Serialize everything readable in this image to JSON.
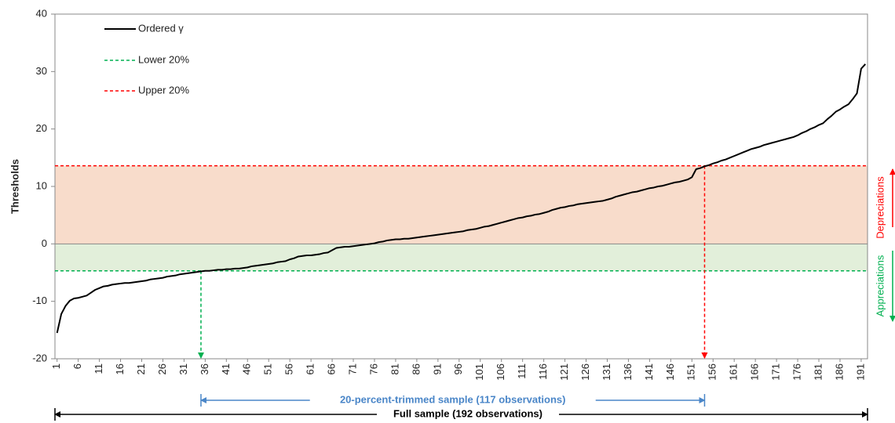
{
  "chart_data": {
    "type": "line",
    "y_label": "Thresholds",
    "ylim": [
      -20,
      40
    ],
    "yticks": [
      -20,
      -10,
      0,
      10,
      20,
      30,
      40
    ],
    "categories": [
      1,
      null,
      null,
      null,
      null,
      6,
      null,
      null,
      null,
      null,
      11,
      null,
      null,
      null,
      null,
      16,
      null,
      null,
      null,
      null,
      21,
      null,
      null,
      null,
      null,
      26,
      null,
      null,
      null,
      null,
      31,
      null,
      null,
      null,
      null,
      36,
      null,
      null,
      null,
      null,
      41,
      null,
      null,
      null,
      null,
      46,
      null,
      null,
      null,
      null,
      51,
      null,
      null,
      null,
      null,
      56,
      null,
      null,
      null,
      null,
      61,
      null,
      null,
      null,
      null,
      66,
      null,
      null,
      null,
      null,
      71,
      null,
      null,
      null,
      null,
      76,
      null,
      null,
      null,
      null,
      81,
      null,
      null,
      null,
      null,
      86,
      null,
      null,
      null,
      null,
      91,
      null,
      null,
      null,
      null,
      96,
      null,
      null,
      null,
      null,
      101,
      null,
      null,
      null,
      null,
      106,
      null,
      null,
      null,
      null,
      111,
      null,
      null,
      null,
      null,
      116,
      null,
      null,
      null,
      null,
      121,
      null,
      null,
      null,
      null,
      126,
      null,
      null,
      null,
      null,
      131,
      null,
      null,
      null,
      null,
      136,
      null,
      null,
      null,
      null,
      141,
      null,
      null,
      null,
      null,
      146,
      null,
      null,
      null,
      null,
      151,
      null,
      null,
      null,
      null,
      156,
      null,
      null,
      null,
      null,
      161,
      null,
      null,
      null,
      null,
      166,
      null,
      null,
      null,
      null,
      171,
      null,
      null,
      null,
      null,
      176,
      null,
      null,
      null,
      null,
      181,
      null,
      null,
      null,
      null,
      186,
      null,
      null,
      null,
      null,
      191,
      null
    ],
    "series": [
      {
        "name": "Ordered γ",
        "color": "#000000",
        "values": [
          -15.5,
          -12.2,
          -10.8,
          -9.9,
          -9.5,
          -9.4,
          -9.2,
          -9.0,
          -8.5,
          -8.0,
          -7.7,
          -7.4,
          -7.3,
          -7.1,
          -7.0,
          -6.9,
          -6.8,
          -6.8,
          -6.7,
          -6.6,
          -6.5,
          -6.4,
          -6.2,
          -6.1,
          -6.0,
          -5.9,
          -5.7,
          -5.6,
          -5.5,
          -5.3,
          -5.2,
          -5.1,
          -5.0,
          -4.9,
          -4.8,
          -4.7,
          -4.7,
          -4.6,
          -4.5,
          -4.5,
          -4.4,
          -4.4,
          -4.3,
          -4.3,
          -4.2,
          -4.1,
          -3.9,
          -3.8,
          -3.7,
          -3.6,
          -3.5,
          -3.4,
          -3.2,
          -3.1,
          -3.0,
          -2.7,
          -2.5,
          -2.2,
          -2.1,
          -2.0,
          -2.0,
          -1.9,
          -1.8,
          -1.6,
          -1.5,
          -1.1,
          -0.7,
          -0.6,
          -0.5,
          -0.5,
          -0.4,
          -0.3,
          -0.2,
          -0.1,
          0.0,
          0.1,
          0.3,
          0.4,
          0.6,
          0.7,
          0.8,
          0.8,
          0.9,
          0.9,
          1.0,
          1.1,
          1.2,
          1.3,
          1.4,
          1.5,
          1.6,
          1.7,
          1.8,
          1.9,
          2.0,
          2.1,
          2.2,
          2.4,
          2.5,
          2.6,
          2.8,
          3.0,
          3.1,
          3.3,
          3.5,
          3.7,
          3.9,
          4.1,
          4.3,
          4.5,
          4.6,
          4.8,
          4.9,
          5.1,
          5.2,
          5.4,
          5.6,
          5.9,
          6.1,
          6.3,
          6.4,
          6.6,
          6.7,
          6.9,
          7.0,
          7.1,
          7.2,
          7.3,
          7.4,
          7.5,
          7.7,
          7.9,
          8.2,
          8.4,
          8.6,
          8.8,
          9.0,
          9.1,
          9.3,
          9.5,
          9.7,
          9.8,
          10.0,
          10.1,
          10.3,
          10.5,
          10.7,
          10.8,
          11.0,
          11.2,
          11.6,
          13.0,
          13.2,
          13.5,
          13.7,
          14.0,
          14.2,
          14.5,
          14.7,
          15.0,
          15.3,
          15.6,
          15.9,
          16.2,
          16.5,
          16.7,
          16.9,
          17.2,
          17.4,
          17.6,
          17.8,
          18.0,
          18.2,
          18.4,
          18.6,
          18.9,
          19.3,
          19.6,
          20.0,
          20.3,
          20.7,
          21.0,
          21.7,
          22.3,
          23.0,
          23.4,
          23.9,
          24.3,
          25.2,
          26.2,
          30.5,
          31.3
        ]
      }
    ],
    "thresholds": [
      {
        "name": "Lower 20%",
        "value": -4.7,
        "index": 35,
        "color": "#00b050",
        "fill": "#e2efda"
      },
      {
        "name": "Upper 20%",
        "value": 13.6,
        "index": 154,
        "color": "#ff0000",
        "fill": "#f8dccb"
      }
    ],
    "annotations": {
      "depreciations": "Depreciations",
      "appreciations": "Appreciations",
      "trimmed": "20-percent-trimmed sample (117 observations)",
      "full": "Full sample (192 observations)"
    }
  }
}
